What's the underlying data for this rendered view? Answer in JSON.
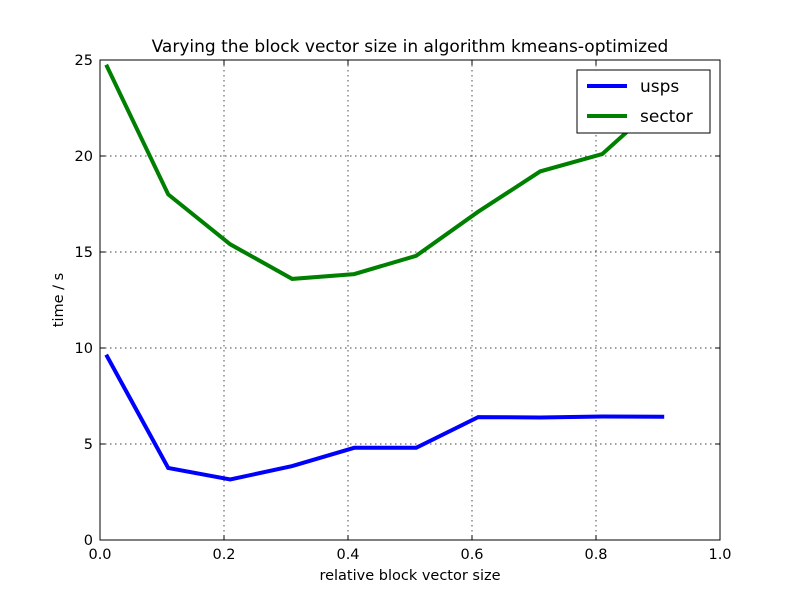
{
  "chart_data": {
    "type": "line",
    "title": "Varying the block vector size in algorithm kmeans-optimized",
    "xlabel": "relative block vector size",
    "ylabel": "time / s",
    "xlim": [
      0.0,
      1.0
    ],
    "ylim": [
      0,
      25
    ],
    "xticks": [
      0.0,
      0.2,
      0.4,
      0.6,
      0.8,
      1.0
    ],
    "xtick_labels": [
      "0.0",
      "0.2",
      "0.4",
      "0.6",
      "0.8",
      "1.0"
    ],
    "yticks": [
      0,
      5,
      10,
      15,
      20,
      25
    ],
    "ytick_labels": [
      "0",
      "5",
      "10",
      "15",
      "20",
      "25"
    ],
    "grid": true,
    "legend_position": "top-right",
    "series": [
      {
        "name": "usps",
        "color": "#0000ff",
        "x": [
          0.01,
          0.11,
          0.21,
          0.31,
          0.41,
          0.51,
          0.61,
          0.71,
          0.81,
          0.91
        ],
        "values": [
          9.65,
          3.75,
          3.15,
          3.85,
          4.8,
          4.8,
          6.4,
          6.38,
          6.43,
          6.42
        ]
      },
      {
        "name": "sector",
        "color": "#008000",
        "x": [
          0.01,
          0.11,
          0.21,
          0.31,
          0.41,
          0.51,
          0.61,
          0.71,
          0.81,
          0.91
        ],
        "values": [
          24.75,
          18.0,
          15.4,
          13.6,
          13.85,
          14.8,
          17.1,
          19.2,
          20.1,
          23.0
        ]
      }
    ]
  }
}
